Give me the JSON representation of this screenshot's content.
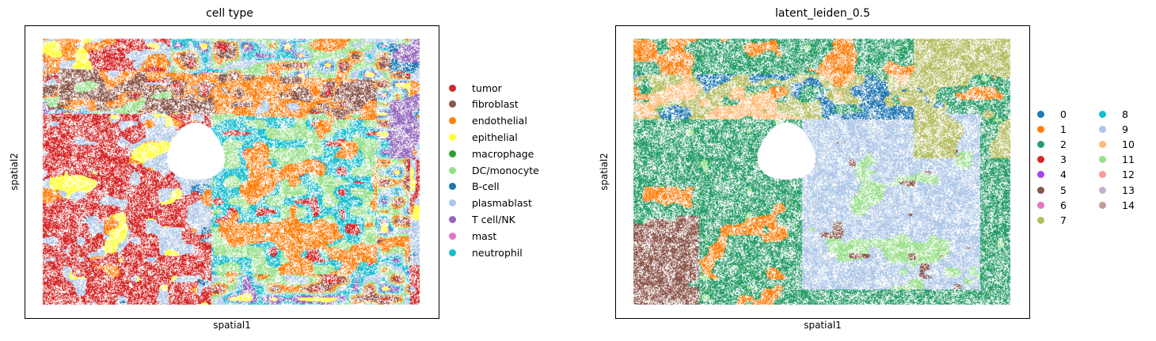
{
  "chart_data": [
    {
      "type": "scatter",
      "title": "cell type",
      "xlabel": "spatial1",
      "ylabel": "spatial2",
      "legend_placement": "right",
      "categories": [
        {
          "name": "tumor",
          "color": "#d62728"
        },
        {
          "name": "fibroblast",
          "color": "#8c564b"
        },
        {
          "name": "endothelial",
          "color": "#ff7f0e"
        },
        {
          "name": "epithelial",
          "color": "#ffff33"
        },
        {
          "name": "macrophage",
          "color": "#2ca02c"
        },
        {
          "name": "DC/monocyte",
          "color": "#98df8a"
        },
        {
          "name": "B-cell",
          "color": "#1f77b4"
        },
        {
          "name": "plasmablast",
          "color": "#aec7e8"
        },
        {
          "name": "T cell/NK",
          "color": "#9467bd"
        },
        {
          "name": "mast",
          "color": "#e377c2"
        },
        {
          "name": "neutrophil",
          "color": "#17becf"
        }
      ]
    },
    {
      "type": "scatter",
      "title": "latent_leiden_0.5",
      "xlabel": "spatial1",
      "ylabel": "spatial2",
      "legend_placement": "right",
      "legend_columns": 2,
      "categories": [
        {
          "name": "0",
          "color": "#1f77b4"
        },
        {
          "name": "1",
          "color": "#ff7f0e"
        },
        {
          "name": "2",
          "color": "#279e68"
        },
        {
          "name": "3",
          "color": "#d62728"
        },
        {
          "name": "4",
          "color": "#aa40fc"
        },
        {
          "name": "5",
          "color": "#8c564b"
        },
        {
          "name": "6",
          "color": "#e377c2"
        },
        {
          "name": "7",
          "color": "#b5bd61"
        },
        {
          "name": "8",
          "color": "#17becf"
        },
        {
          "name": "9",
          "color": "#aec7e8"
        },
        {
          "name": "10",
          "color": "#ffbb78"
        },
        {
          "name": "11",
          "color": "#98df8a"
        },
        {
          "name": "12",
          "color": "#ff9896"
        },
        {
          "name": "13",
          "color": "#c5b0d5"
        },
        {
          "name": "14",
          "color": "#c49c94"
        }
      ]
    }
  ]
}
